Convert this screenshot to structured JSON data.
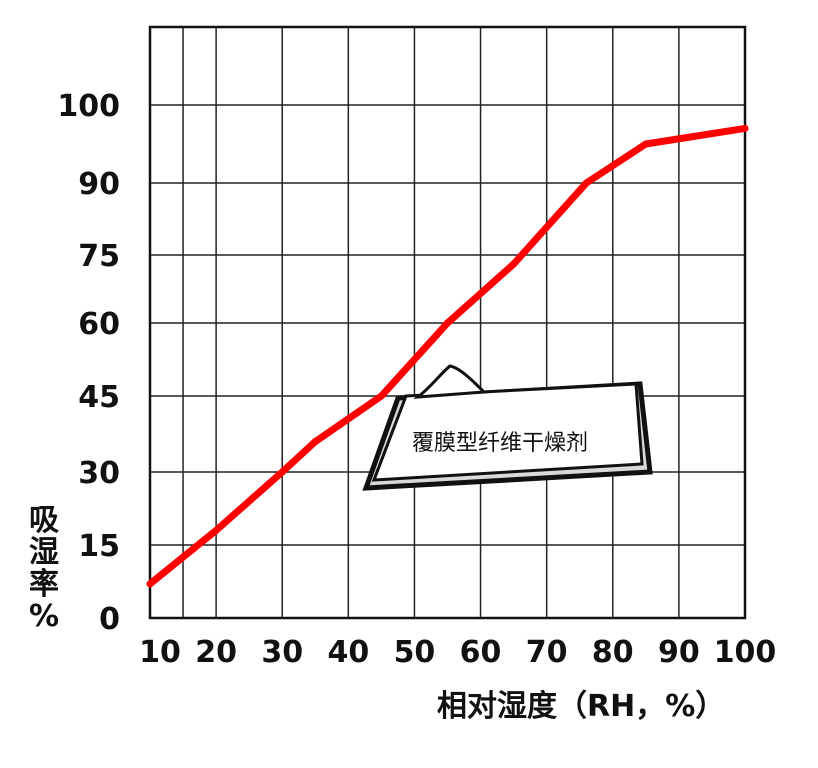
{
  "chart_data": {
    "type": "line",
    "title": "",
    "xlabel": "相对湿度（RH，%）",
    "ylabel": "吸湿率%",
    "x_ticks": [
      "10",
      "20",
      "30",
      "40",
      "50",
      "60",
      "70",
      "80",
      "90",
      "100"
    ],
    "y_ticks": [
      "0",
      "15",
      "30",
      "45",
      "60",
      "75",
      "90",
      "100"
    ],
    "grid": true,
    "series": [
      {
        "color": "#ff0000",
        "points": [
          {
            "x": 10,
            "y": 7
          },
          {
            "x": 20,
            "y": 18
          },
          {
            "x": 30,
            "y": 30
          },
          {
            "x": 35,
            "y": 36
          },
          {
            "x": 45,
            "y": 45
          },
          {
            "x": 55,
            "y": 60
          },
          {
            "x": 65,
            "y": 73
          },
          {
            "x": 76,
            "y": 90
          },
          {
            "x": 85,
            "y": 95
          },
          {
            "x": 100,
            "y": 97
          }
        ]
      }
    ],
    "annotations": [
      {
        "text": "覆膜型纤维干燥剂"
      }
    ]
  }
}
